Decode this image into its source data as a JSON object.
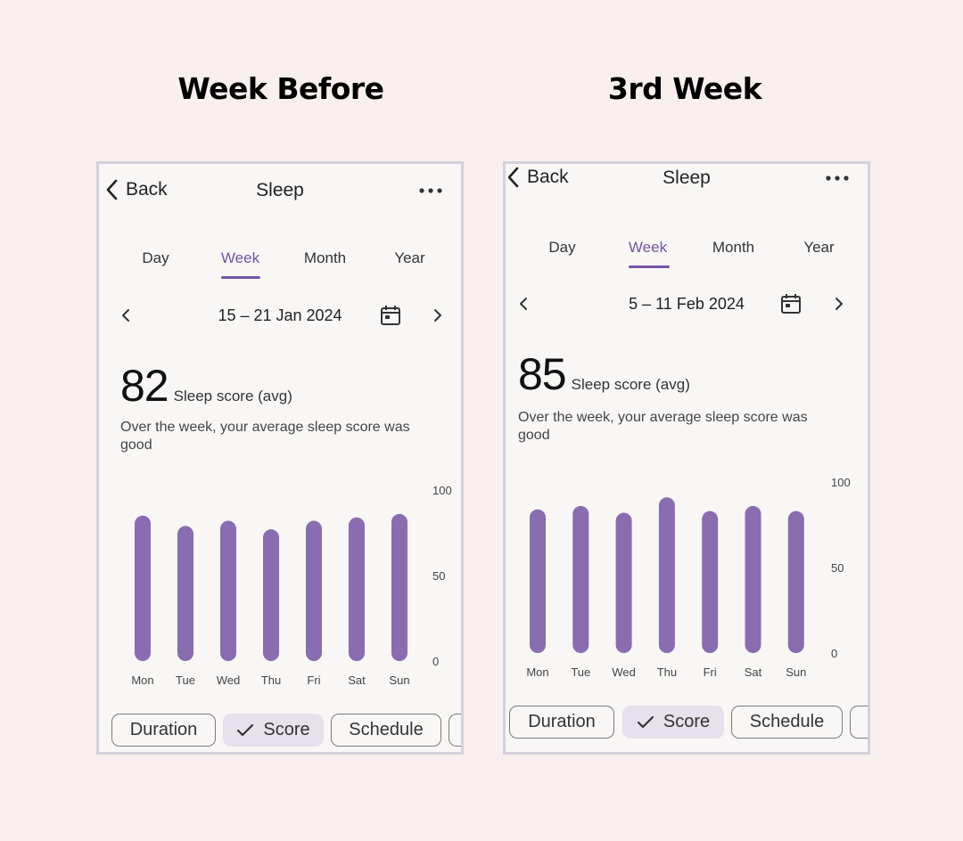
{
  "headings": {
    "left": "Week Before",
    "right": "3rd Week"
  },
  "panels": [
    {
      "back_label": "Back",
      "title": "Sleep",
      "tabs": [
        "Day",
        "Week",
        "Month",
        "Year"
      ],
      "active_tab": "Week",
      "date_range": "15 – 21 Jan 2024",
      "score": "82",
      "score_label": "Sleep score (avg)",
      "summary": "Over the week, your average sleep score was good",
      "chips": [
        "Duration",
        "Score",
        "Schedule"
      ],
      "selected_chip": "Score",
      "chart_data": {
        "type": "bar",
        "categories": [
          "Mon",
          "Tue",
          "Wed",
          "Thu",
          "Fri",
          "Sat",
          "Sun"
        ],
        "values": [
          85,
          79,
          82,
          77,
          82,
          84,
          86
        ],
        "ylim": [
          0,
          100
        ],
        "y_ticks": [
          "100",
          "50",
          "0"
        ]
      }
    },
    {
      "back_label": "Back",
      "title": "Sleep",
      "tabs": [
        "Day",
        "Week",
        "Month",
        "Year"
      ],
      "active_tab": "Week",
      "date_range": "5 – 11 Feb 2024",
      "score": "85",
      "score_label": "Sleep score (avg)",
      "summary": "Over the week, your average sleep score was good",
      "chips": [
        "Duration",
        "Score",
        "Schedule"
      ],
      "selected_chip": "Score",
      "chart_data": {
        "type": "bar",
        "categories": [
          "Mon",
          "Tue",
          "Wed",
          "Thu",
          "Fri",
          "Sat",
          "Sun"
        ],
        "values": [
          84,
          86,
          82,
          91,
          83,
          86,
          83
        ],
        "ylim": [
          0,
          100
        ],
        "y_ticks": [
          "100",
          "50",
          "0"
        ]
      }
    }
  ],
  "colors": {
    "accent": "#7454a6",
    "bar": "#8a6cb0",
    "background": "#f8efee",
    "chip_selected": "#e6e1ec"
  },
  "icons": {
    "back": "chevron-left-icon",
    "more": "more-horizontal-icon",
    "prev": "chevron-left-icon",
    "next": "chevron-right-icon",
    "calendar": "calendar-icon",
    "check": "check-icon"
  }
}
